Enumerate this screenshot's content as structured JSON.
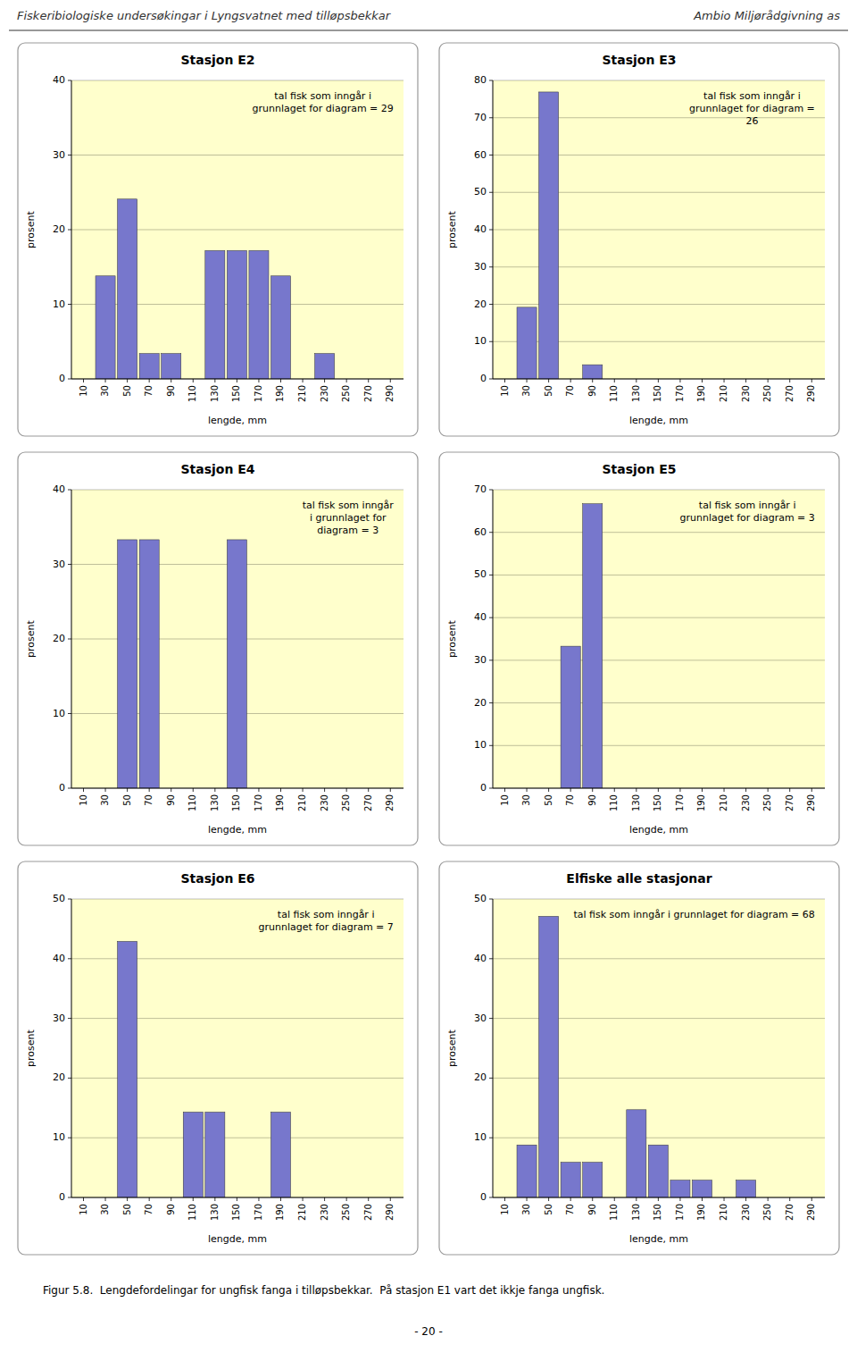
{
  "annotations": [
    "Fiskeribiologiske undersøkingar i Lyngsvatnet med tilløpsbekkar",
    "Ambio Miljørådgivning as",
    "Figur 5.8.  Lengdefordelingar for ungfisk fanga i tilløpsbekkar.  På stasjon E1 vart det ikkje fanga ungfisk.",
    "- 20 -"
  ],
  "chart_data": [
    {
      "type": "bar",
      "title": "Stasjon E2",
      "xlabel": "lengde, mm",
      "ylabel": "prosent",
      "color": "#7777cc",
      "grid": true,
      "x": [
        10,
        30,
        50,
        70,
        90,
        110,
        130,
        150,
        170,
        190,
        210,
        230,
        250,
        270,
        290
      ],
      "values": [
        0,
        13.8,
        24.1,
        3.4,
        3.4,
        0,
        17.2,
        17.2,
        17.2,
        13.8,
        0,
        3.4,
        0,
        0,
        0
      ],
      "xlim": [
        -1,
        302
      ],
      "xticks": [
        10,
        30,
        50,
        70,
        90,
        110,
        130,
        150,
        170,
        190,
        210,
        230,
        250,
        270,
        290
      ],
      "ylim": [
        0,
        40
      ],
      "yticks": [
        0,
        10,
        20,
        30,
        40
      ],
      "annotations": [
        "tal fisk som inngår i\ngrunnlaget for diagram = 29"
      ]
    },
    {
      "type": "bar",
      "title": "Stasjon E3",
      "xlabel": "lengde, mm",
      "ylabel": "prosent",
      "color": "#7777cc",
      "grid": true,
      "x": [
        10,
        30,
        50,
        70,
        90,
        110,
        130,
        150,
        170,
        190,
        210,
        230,
        250,
        270,
        290
      ],
      "values": [
        0,
        19.2,
        76.9,
        0,
        3.8,
        0,
        0,
        0,
        0,
        0,
        0,
        0,
        0,
        0,
        0
      ],
      "xlim": [
        -1,
        302
      ],
      "xticks": [
        10,
        30,
        50,
        70,
        90,
        110,
        130,
        150,
        170,
        190,
        210,
        230,
        250,
        270,
        290
      ],
      "ylim": [
        0,
        80
      ],
      "yticks": [
        0,
        10,
        20,
        30,
        40,
        50,
        60,
        70,
        80
      ],
      "annotations": [
        "tal fisk som inngår i\ngrunnlaget for diagram =\n26"
      ]
    },
    {
      "type": "bar",
      "title": "Stasjon E4",
      "xlabel": "lengde, mm",
      "ylabel": "prosent",
      "color": "#7777cc",
      "grid": true,
      "x": [
        10,
        30,
        50,
        70,
        90,
        110,
        130,
        150,
        170,
        190,
        210,
        230,
        250,
        270,
        290
      ],
      "values": [
        0,
        0,
        33.3,
        33.3,
        0,
        0,
        0,
        33.3,
        0,
        0,
        0,
        0,
        0,
        0,
        0
      ],
      "xlim": [
        -1,
        302
      ],
      "xticks": [
        10,
        30,
        50,
        70,
        90,
        110,
        130,
        150,
        170,
        190,
        210,
        230,
        250,
        270,
        290
      ],
      "ylim": [
        0,
        40
      ],
      "yticks": [
        0,
        10,
        20,
        30,
        40
      ],
      "annotations": [
        "tal fisk som inngår\ni grunnlaget for\ndiagram = 3"
      ]
    },
    {
      "type": "bar",
      "title": "Stasjon E5",
      "xlabel": "lengde, mm",
      "ylabel": "prosent",
      "color": "#7777cc",
      "grid": true,
      "x": [
        10,
        30,
        50,
        70,
        90,
        110,
        130,
        150,
        170,
        190,
        210,
        230,
        250,
        270,
        290
      ],
      "values": [
        0,
        0,
        0,
        33.3,
        66.7,
        0,
        0,
        0,
        0,
        0,
        0,
        0,
        0,
        0,
        0
      ],
      "xlim": [
        -1,
        302
      ],
      "xticks": [
        10,
        30,
        50,
        70,
        90,
        110,
        130,
        150,
        170,
        190,
        210,
        230,
        250,
        270,
        290
      ],
      "ylim": [
        0,
        70
      ],
      "yticks": [
        0,
        10,
        20,
        30,
        40,
        50,
        60,
        70
      ],
      "annotations": [
        "tal fisk som inngår i\ngrunnlaget for diagram = 3"
      ]
    },
    {
      "type": "bar",
      "title": "Stasjon E6",
      "xlabel": "lengde, mm",
      "ylabel": "prosent",
      "color": "#7777cc",
      "grid": true,
      "x": [
        10,
        30,
        50,
        70,
        90,
        110,
        130,
        150,
        170,
        190,
        210,
        230,
        250,
        270,
        290
      ],
      "values": [
        0,
        0,
        42.9,
        0,
        0,
        14.3,
        14.3,
        0,
        0,
        14.3,
        0,
        0,
        0,
        0,
        0
      ],
      "xlim": [
        -1,
        302
      ],
      "xticks": [
        10,
        30,
        50,
        70,
        90,
        110,
        130,
        150,
        170,
        190,
        210,
        230,
        250,
        270,
        290
      ],
      "ylim": [
        0,
        50
      ],
      "yticks": [
        0,
        10,
        20,
        30,
        40,
        50
      ],
      "annotations": [
        "tal fisk som inngår i\ngrunnlaget for diagram = 7"
      ]
    },
    {
      "type": "bar",
      "title": "Elfiske alle stasjonar",
      "xlabel": "lengde, mm",
      "ylabel": "prosent",
      "color": "#7777cc",
      "grid": true,
      "x": [
        10,
        30,
        50,
        70,
        90,
        110,
        130,
        150,
        170,
        190,
        210,
        230,
        250,
        270,
        290
      ],
      "values": [
        0,
        8.8,
        47.1,
        5.9,
        5.9,
        0,
        14.7,
        8.8,
        2.9,
        2.9,
        0,
        2.9,
        0,
        0,
        0
      ],
      "xlim": [
        -1,
        302
      ],
      "xticks": [
        10,
        30,
        50,
        70,
        90,
        110,
        130,
        150,
        170,
        190,
        210,
        230,
        250,
        270,
        290
      ],
      "ylim": [
        0,
        50
      ],
      "yticks": [
        0,
        10,
        20,
        30,
        40,
        50
      ],
      "annotations": [
        "tal fisk som inngår i grunnlaget for diagram = 68"
      ]
    }
  ]
}
